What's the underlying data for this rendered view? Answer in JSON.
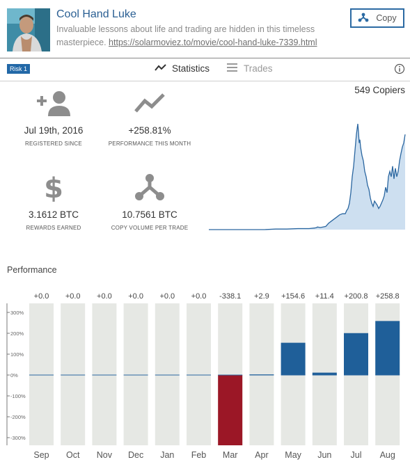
{
  "header": {
    "title": "Cool Hand Luke",
    "description": "Invaluable lessons about life and trading are hidden in this timeless masterpiece.",
    "link": "https://solarmoviez.to/movie/cool-hand-luke-7339.html",
    "copy_label": "Copy"
  },
  "tabs": {
    "risk_badge": "Risk 1",
    "statistics_label": "Statistics",
    "trades_label": "Trades"
  },
  "stats": {
    "registered": {
      "value": "Jul 19th, 2016",
      "label": "REGISTERED SINCE",
      "icon": "add-user-icon"
    },
    "performance": {
      "value": "+258.81%",
      "label": "PERFORMANCE THIS MONTH",
      "icon": "trend-line-icon"
    },
    "rewards": {
      "value": "3.1612 BTC",
      "label": "REWARDS EARNED",
      "icon": "dollar-icon"
    },
    "volume": {
      "value": "10.7561 BTC",
      "label": "COPY VOLUME PER TRADE",
      "icon": "copy-fork-icon"
    }
  },
  "copiers": "549 Copiers",
  "colors": {
    "accent": "#2b6aa3",
    "positive_bar": "#1f5f99",
    "negative_bar": "#9b1726",
    "bar_background": "#e6e8e4",
    "area_fill": "#cddff0",
    "area_line": "#2a66a0"
  },
  "mini_chart": {
    "type": "area",
    "points": [
      [
        0,
        0
      ],
      [
        16,
        0
      ],
      [
        32,
        0
      ],
      [
        48,
        0
      ],
      [
        64,
        0
      ],
      [
        80,
        0
      ],
      [
        96,
        0.005
      ],
      [
        112,
        0.005
      ],
      [
        128,
        0.01
      ],
      [
        144,
        0.01
      ],
      [
        152,
        0.015
      ],
      [
        155,
        0.02
      ],
      [
        156,
        0.025
      ],
      [
        160,
        0.02
      ],
      [
        164,
        0.025
      ],
      [
        168,
        0.03
      ],
      [
        172,
        0.06
      ],
      [
        176,
        0.08
      ],
      [
        180,
        0.1
      ],
      [
        184,
        0.12
      ],
      [
        188,
        0.14
      ],
      [
        192,
        0.15
      ],
      [
        196,
        0.15
      ],
      [
        198,
        0.18
      ],
      [
        200,
        0.2
      ],
      [
        202,
        0.25
      ],
      [
        204,
        0.35
      ],
      [
        206,
        0.5
      ],
      [
        208,
        0.6
      ],
      [
        210,
        0.75
      ],
      [
        212,
        0.9
      ],
      [
        214,
        1.0
      ],
      [
        215,
        0.92
      ],
      [
        216,
        0.82
      ],
      [
        217,
        0.85
      ],
      [
        218,
        0.78
      ],
      [
        220,
        0.7
      ],
      [
        222,
        0.65
      ],
      [
        224,
        0.55
      ],
      [
        226,
        0.5
      ],
      [
        228,
        0.42
      ],
      [
        230,
        0.38
      ],
      [
        232,
        0.3
      ],
      [
        234,
        0.25
      ],
      [
        236,
        0.22
      ],
      [
        238,
        0.27
      ],
      [
        240,
        0.25
      ],
      [
        242,
        0.23
      ],
      [
        244,
        0.2
      ],
      [
        246,
        0.22
      ],
      [
        248,
        0.25
      ],
      [
        250,
        0.28
      ],
      [
        252,
        0.32
      ],
      [
        254,
        0.4
      ],
      [
        256,
        0.35
      ],
      [
        258,
        0.5
      ],
      [
        260,
        0.55
      ],
      [
        262,
        0.5
      ],
      [
        264,
        0.6
      ],
      [
        266,
        0.48
      ],
      [
        268,
        0.58
      ],
      [
        270,
        0.5
      ],
      [
        272,
        0.55
      ],
      [
        274,
        0.65
      ],
      [
        276,
        0.72
      ],
      [
        278,
        0.78
      ],
      [
        280,
        0.82
      ],
      [
        282,
        0.9
      ]
    ]
  },
  "performance": {
    "title": "Performance",
    "chart_data": {
      "type": "bar",
      "categories": [
        "Sep",
        "Oct",
        "Nov",
        "Dec",
        "Jan",
        "Feb",
        "Mar",
        "Apr",
        "May",
        "Jun",
        "Jul",
        "Aug"
      ],
      "values": [
        0.0,
        0.0,
        0.0,
        0.0,
        0.0,
        0.0,
        -338.1,
        2.9,
        154.6,
        11.4,
        200.8,
        258.8
      ],
      "value_labels": [
        "+0.0",
        "+0.0",
        "+0.0",
        "+0.0",
        "+0.0",
        "+0.0",
        "-338.1",
        "+2.9",
        "+154.6",
        "+11.4",
        "+200.8",
        "+258.8"
      ],
      "yticks": [
        "300%",
        "200%",
        "100%",
        "0%",
        "-100%",
        "-200%",
        "-300%"
      ],
      "ylim": [
        -340,
        340
      ]
    }
  }
}
